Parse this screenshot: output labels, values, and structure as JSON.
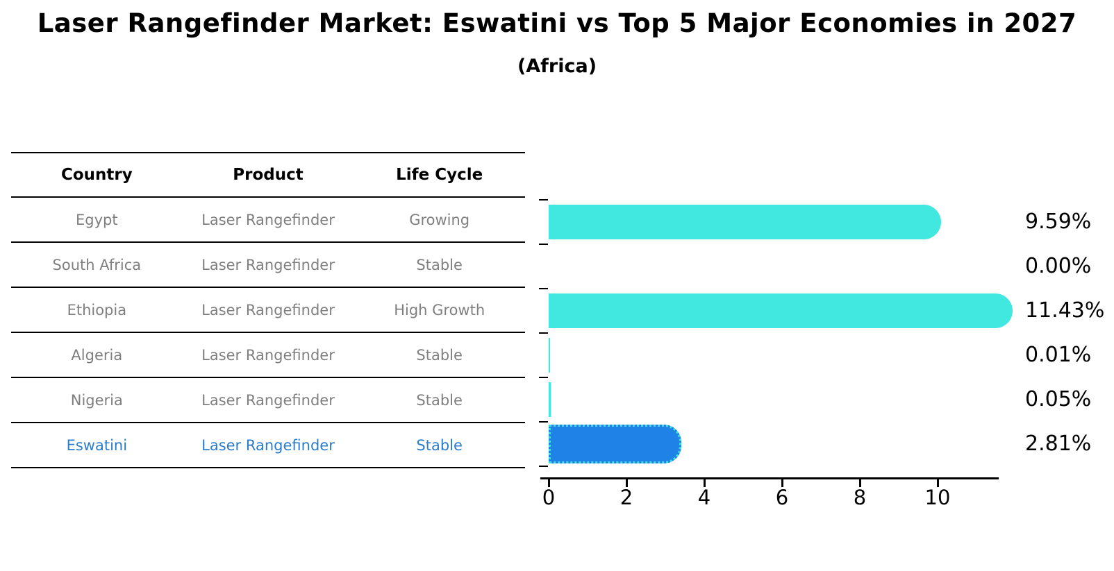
{
  "title": "Laser Rangefinder Market: Eswatini vs Top 5 Major Economies in 2027",
  "subtitle": "(Africa)",
  "table": {
    "headers": [
      "Country",
      "Product",
      "Life Cycle"
    ],
    "rows": [
      {
        "country": "Egypt",
        "product": "Laser Rangefinder",
        "life_cycle": "Growing",
        "highlight": false
      },
      {
        "country": "South Africa",
        "product": "Laser Rangefinder",
        "life_cycle": "Stable",
        "highlight": false
      },
      {
        "country": "Ethiopia",
        "product": "Laser Rangefinder",
        "life_cycle": "High Growth",
        "highlight": false
      },
      {
        "country": "Algeria",
        "product": "Laser Rangefinder",
        "life_cycle": "Stable",
        "highlight": false
      },
      {
        "country": "Nigeria",
        "product": "Laser Rangefinder",
        "life_cycle": "Stable",
        "highlight": false
      },
      {
        "country": "Eswatini",
        "product": "Laser Rangefinder",
        "life_cycle": "Stable",
        "highlight": true
      }
    ]
  },
  "chart_data": {
    "type": "bar",
    "orientation": "horizontal",
    "title": "Laser Rangefinder Market: Eswatini vs Top 5 Major Economies in 2027",
    "subtitle": "(Africa)",
    "categories": [
      "Egypt",
      "South Africa",
      "Ethiopia",
      "Algeria",
      "Nigeria",
      "Eswatini"
    ],
    "values": [
      9.59,
      0.0,
      11.43,
      0.01,
      0.05,
      2.81
    ],
    "value_labels": [
      "9.59%",
      "0.00%",
      "11.43%",
      "0.01%",
      "0.05%",
      "2.81%"
    ],
    "x_ticks": [
      0,
      2,
      4,
      6,
      8,
      10
    ],
    "xlim": [
      0,
      11.55
    ],
    "xlabel": "",
    "ylabel": "",
    "grid": false,
    "legend": false,
    "highlight_index": 5,
    "bar_color": "#40E8DF",
    "highlight_color": "#1E82E6",
    "highlight_border_color": "#40E0D8"
  },
  "colors": {
    "background": "#FFFFFF",
    "table_text_gray": "#7F7F7F",
    "highlight_text_blue": "#2A7CCE",
    "axis_black": "#000000"
  }
}
